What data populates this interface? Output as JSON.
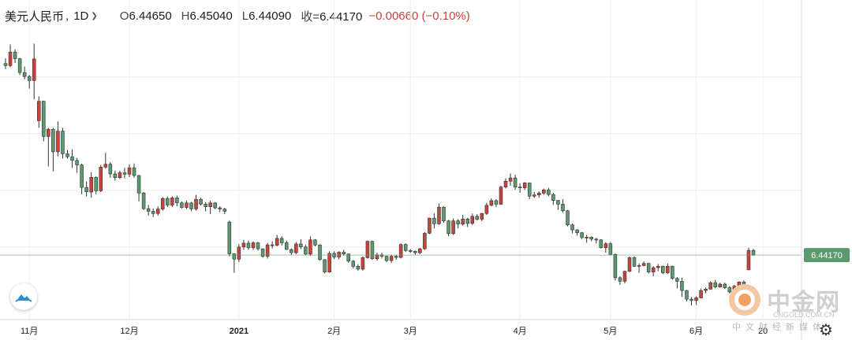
{
  "header": {
    "symbol": "美元人民币",
    "separator": ",",
    "interval": "1D",
    "open_label": "O",
    "open": "6.44650",
    "high_label": "H",
    "high": "6.45040",
    "low_label": "L",
    "low": "6.44090",
    "close_label": "收=",
    "close": "6.44170",
    "change": "−0.00660 (−0.10%)"
  },
  "watermark": {
    "name": "中金网",
    "domain": "CNGOLD.COM.CN",
    "tagline": "中文财经新媒体"
  },
  "colors": {
    "up": "#c8443b",
    "down": "#5b9a6e",
    "last_price_line": "#5b9a6e",
    "grid": "#efefef"
  },
  "icons": {
    "logo": "cloud-logo-icon",
    "settings": "gear-icon",
    "dropdown": "chevron-down-icon"
  },
  "chart_data": {
    "type": "candlestick",
    "ylim": [
      6.358,
      6.755
    ],
    "last_price": 6.4417,
    "last_price_label": "6.44170",
    "x_ticks": [
      {
        "label": "11月",
        "index": 5,
        "bold": false
      },
      {
        "label": "12月",
        "index": 26,
        "bold": false
      },
      {
        "label": "2021",
        "index": 49,
        "bold": true
      },
      {
        "label": "2月",
        "index": 69,
        "bold": false
      },
      {
        "label": "3月",
        "index": 85,
        "bold": false
      },
      {
        "label": "4月",
        "index": 108,
        "bold": false
      },
      {
        "label": "5月",
        "index": 127,
        "bold": false
      },
      {
        "label": "6月",
        "index": 145,
        "bold": false
      },
      {
        "label": "20",
        "index": 159,
        "bold": false
      }
    ],
    "candles": [
      [
        6.7101,
        6.7175,
        6.7025,
        6.7072
      ],
      [
        6.7072,
        6.737,
        6.705,
        6.7262
      ],
      [
        6.7262,
        6.73,
        6.711,
        6.7168
      ],
      [
        6.7168,
        6.718,
        6.694,
        6.6975
      ],
      [
        6.6975,
        6.706,
        6.688,
        6.6919
      ],
      [
        6.6919,
        6.694,
        6.675,
        6.6863
      ],
      [
        6.6863,
        6.738,
        6.66,
        6.7165
      ],
      [
        6.63,
        6.664,
        6.62,
        6.6572
      ],
      [
        6.6572,
        6.658,
        6.601,
        6.6079
      ],
      [
        6.6079,
        6.62,
        6.566,
        6.6181
      ],
      [
        6.6181,
        6.62,
        6.559,
        6.5864
      ],
      [
        6.5864,
        6.629,
        6.58,
        6.6154
      ],
      [
        6.6154,
        6.62,
        6.577,
        6.5837
      ],
      [
        6.5837,
        6.589,
        6.577,
        6.5795
      ],
      [
        6.5795,
        6.59,
        6.564,
        6.5743
      ],
      [
        6.5743,
        6.578,
        6.557,
        6.568
      ],
      [
        6.568,
        6.57,
        6.527,
        6.5365
      ],
      [
        6.5365,
        6.545,
        6.524,
        6.5304
      ],
      [
        6.53,
        6.558,
        6.522,
        6.5506
      ],
      [
        6.5506,
        6.552,
        6.527,
        6.5318
      ],
      [
        6.5318,
        6.568,
        6.53,
        6.5649
      ],
      [
        6.5649,
        6.585,
        6.563,
        6.569
      ],
      [
        6.569,
        6.572,
        6.55,
        6.5554
      ],
      [
        6.5554,
        6.56,
        6.546,
        6.5502
      ],
      [
        6.5502,
        6.56,
        6.548,
        6.557
      ],
      [
        6.557,
        6.564,
        6.549,
        6.555
      ],
      [
        6.555,
        6.569,
        6.551,
        6.564
      ],
      [
        6.564,
        6.57,
        6.55,
        6.5532
      ],
      [
        6.5532,
        6.554,
        6.517,
        6.5287
      ],
      [
        6.5287,
        6.53,
        6.505,
        6.5067
      ],
      [
        6.5067,
        6.512,
        6.497,
        6.503
      ],
      [
        6.503,
        6.507,
        6.495,
        6.5
      ],
      [
        6.5,
        6.51,
        6.497,
        6.5062
      ],
      [
        6.5062,
        6.523,
        6.504,
        6.521
      ],
      [
        6.521,
        6.524,
        6.509,
        6.5118
      ],
      [
        6.5118,
        6.524,
        6.509,
        6.5218
      ],
      [
        6.5218,
        6.525,
        6.51,
        6.5148
      ],
      [
        6.5148,
        6.517,
        6.507,
        6.5085
      ],
      [
        6.5085,
        6.518,
        6.506,
        6.5148
      ],
      [
        6.5148,
        6.516,
        6.503,
        6.5064
      ],
      [
        6.5064,
        6.526,
        6.504,
        6.5198
      ],
      [
        6.5198,
        6.522,
        6.511,
        6.5132
      ],
      [
        6.5132,
        6.516,
        6.503,
        6.5095
      ],
      [
        6.5095,
        6.518,
        6.499,
        6.5147
      ],
      [
        6.5147,
        6.516,
        6.506,
        6.5079
      ],
      [
        6.5079,
        6.51,
        6.502,
        6.5062
      ],
      [
        6.5062,
        6.508,
        6.499,
        6.503
      ],
      [
        6.488,
        6.49,
        6.44,
        6.4434
      ],
      [
        6.4434,
        6.444,
        6.417,
        6.436
      ],
      [
        6.436,
        6.457,
        6.432,
        6.453
      ],
      [
        6.453,
        6.463,
        6.449,
        6.4584
      ],
      [
        6.4584,
        6.462,
        6.449,
        6.4519
      ],
      [
        6.4519,
        6.461,
        6.449,
        6.4589
      ],
      [
        6.4589,
        6.46,
        6.448,
        6.4505
      ],
      [
        6.4505,
        6.451,
        6.438,
        6.44
      ],
      [
        6.44,
        6.459,
        6.437,
        6.456
      ],
      [
        6.456,
        6.461,
        6.451,
        6.4555
      ],
      [
        6.4555,
        6.47,
        6.454,
        6.4651
      ],
      [
        6.4651,
        6.468,
        6.455,
        6.459
      ],
      [
        6.459,
        6.462,
        6.449,
        6.4495
      ],
      [
        6.4495,
        6.451,
        6.442,
        6.445
      ],
      [
        6.445,
        6.46,
        6.443,
        6.4573
      ],
      [
        6.4573,
        6.464,
        6.45,
        6.4531
      ],
      [
        6.4531,
        6.456,
        6.442,
        6.443
      ],
      [
        6.443,
        6.468,
        6.441,
        6.463
      ],
      [
        6.463,
        6.464,
        6.454,
        6.4558
      ],
      [
        6.4558,
        6.457,
        6.434,
        6.4353
      ],
      [
        6.4353,
        6.436,
        6.416,
        6.418
      ],
      [
        6.418,
        6.447,
        6.417,
        6.444
      ],
      [
        6.444,
        6.447,
        6.436,
        6.439
      ],
      [
        6.439,
        6.447,
        6.436,
        6.4457
      ],
      [
        6.4457,
        6.449,
        6.441,
        6.4432
      ],
      [
        6.4432,
        6.444,
        6.431,
        6.4332
      ],
      [
        6.4332,
        6.435,
        6.423,
        6.426
      ],
      [
        6.426,
        6.429,
        6.42,
        6.422
      ],
      [
        6.422,
        6.44,
        6.42,
        6.438
      ],
      [
        6.438,
        6.462,
        6.437,
        6.461
      ],
      [
        6.461,
        6.462,
        6.435,
        6.4366
      ],
      [
        6.4366,
        6.445,
        6.434,
        6.442
      ],
      [
        6.442,
        6.445,
        6.437,
        6.44
      ],
      [
        6.44,
        6.441,
        6.432,
        6.434
      ],
      [
        6.434,
        6.442,
        6.431,
        6.44
      ],
      [
        6.44,
        6.442,
        6.435,
        6.4385
      ],
      [
        6.4385,
        6.458,
        6.437,
        6.4565
      ],
      [
        6.4565,
        6.458,
        6.446,
        6.448
      ],
      [
        6.448,
        6.45,
        6.445,
        6.447
      ],
      [
        6.447,
        6.448,
        6.442,
        6.445
      ],
      [
        6.445,
        6.452,
        6.443,
        6.4505
      ],
      [
        6.4505,
        6.474,
        6.449,
        6.4723
      ],
      [
        6.4723,
        6.494,
        6.471,
        6.4935
      ],
      [
        6.4935,
        6.5,
        6.479,
        6.4855
      ],
      [
        6.4855,
        6.514,
        6.484,
        6.5088
      ],
      [
        6.5088,
        6.51,
        6.487,
        6.4895
      ],
      [
        6.4895,
        6.491,
        6.468,
        6.4718
      ],
      [
        6.4718,
        6.493,
        6.47,
        6.4896
      ],
      [
        6.4896,
        6.492,
        6.479,
        6.485
      ],
      [
        6.485,
        6.498,
        6.483,
        6.4922
      ],
      [
        6.4922,
        6.494,
        6.481,
        6.486
      ],
      [
        6.486,
        6.5,
        6.484,
        6.496
      ],
      [
        6.496,
        6.499,
        6.49,
        6.492
      ],
      [
        6.492,
        6.501,
        6.489,
        6.5
      ],
      [
        6.5,
        6.515,
        6.498,
        6.5115
      ],
      [
        6.5115,
        6.521,
        6.51,
        6.518
      ],
      [
        6.518,
        6.52,
        6.509,
        6.513
      ],
      [
        6.513,
        6.539,
        6.512,
        6.537
      ],
      [
        6.537,
        6.549,
        6.535,
        6.5452
      ],
      [
        6.5452,
        6.556,
        6.539,
        6.5497
      ],
      [
        6.5497,
        6.554,
        6.533,
        6.537
      ],
      [
        6.537,
        6.542,
        6.529,
        6.536
      ],
      [
        6.536,
        6.544,
        6.533,
        6.5428
      ],
      [
        6.5428,
        6.543,
        6.52,
        6.5243
      ],
      [
        6.5243,
        6.53,
        6.522,
        6.526
      ],
      [
        6.526,
        6.531,
        6.522,
        6.5285
      ],
      [
        6.5285,
        6.535,
        6.526,
        6.533
      ],
      [
        6.533,
        6.536,
        6.524,
        6.5266
      ],
      [
        6.5266,
        6.529,
        6.512,
        6.5182
      ],
      [
        6.5182,
        6.519,
        6.505,
        6.513
      ],
      [
        6.513,
        6.52,
        6.501,
        6.5038
      ],
      [
        6.5038,
        6.505,
        6.482,
        6.484
      ],
      [
        6.484,
        6.486,
        6.472,
        6.477
      ],
      [
        6.477,
        6.478,
        6.469,
        6.473
      ],
      [
        6.473,
        6.474,
        6.464,
        6.4663
      ],
      [
        6.4663,
        6.47,
        6.459,
        6.4668
      ],
      [
        6.4668,
        6.468,
        6.461,
        6.464
      ],
      [
        6.464,
        6.466,
        6.458,
        6.463
      ],
      [
        6.463,
        6.464,
        6.451,
        6.452
      ],
      [
        6.452,
        6.46,
        6.445,
        6.4576
      ],
      [
        6.4576,
        6.46,
        6.442,
        6.4426
      ],
      [
        6.4426,
        6.444,
        6.406,
        6.41
      ],
      [
        6.41,
        6.412,
        6.4,
        6.405
      ],
      [
        6.405,
        6.42,
        6.402,
        6.419
      ],
      [
        6.419,
        6.44,
        6.418,
        6.438
      ],
      [
        6.438,
        6.44,
        6.425,
        6.426
      ],
      [
        6.426,
        6.43,
        6.417,
        6.427
      ],
      [
        6.427,
        6.433,
        6.426,
        6.43
      ],
      [
        6.43,
        6.431,
        6.416,
        6.418
      ],
      [
        6.418,
        6.426,
        6.412,
        6.424
      ],
      [
        6.424,
        6.429,
        6.419,
        6.426
      ],
      [
        6.426,
        6.427,
        6.415,
        6.417
      ],
      [
        6.417,
        6.43,
        6.415,
        6.426
      ],
      [
        6.426,
        6.427,
        6.407,
        6.409
      ],
      [
        6.409,
        6.411,
        6.395,
        6.405
      ],
      [
        6.405,
        6.41,
        6.383,
        6.392
      ],
      [
        6.392,
        6.393,
        6.377,
        6.38
      ],
      [
        6.38,
        6.383,
        6.371,
        6.378
      ],
      [
        6.378,
        6.384,
        6.372,
        6.3818
      ],
      [
        6.3818,
        6.395,
        6.381,
        6.392
      ],
      [
        6.392,
        6.396,
        6.388,
        6.394
      ],
      [
        6.394,
        6.405,
        6.393,
        6.403
      ],
      [
        6.403,
        6.407,
        6.395,
        6.397
      ],
      [
        6.397,
        6.403,
        6.396,
        6.401
      ],
      [
        6.401,
        6.403,
        6.394,
        6.396
      ],
      [
        6.396,
        6.398,
        6.388,
        6.39
      ],
      [
        6.39,
        6.4,
        6.388,
        6.398
      ],
      [
        6.398,
        6.405,
        6.395,
        6.404
      ],
      [
        6.404,
        6.406,
        6.398,
        6.4
      ],
      [
        6.421,
        6.452,
        6.421,
        6.4483
      ],
      [
        6.4483,
        6.4504,
        6.4409,
        6.4417
      ]
    ]
  }
}
